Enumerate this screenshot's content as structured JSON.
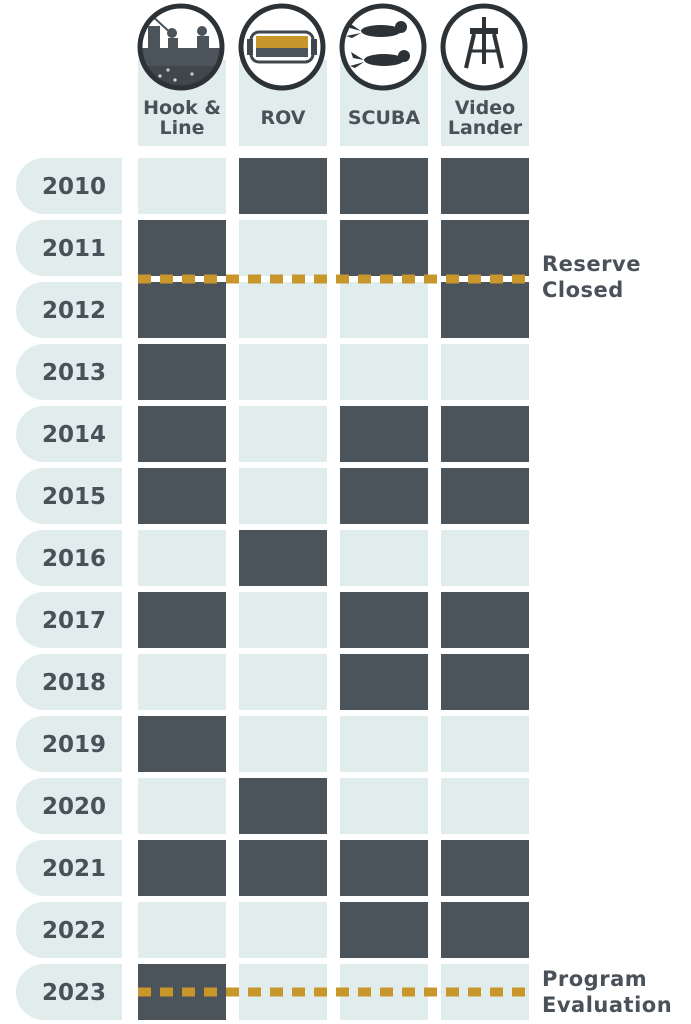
{
  "chart_data": {
    "type": "table",
    "columns": [
      {
        "label_lines": [
          "Hook &",
          "Line"
        ],
        "icon": "hook-and-line-fishing-boat-icon"
      },
      {
        "label_lines": [
          "ROV"
        ],
        "icon": "rov-vehicle-icon"
      },
      {
        "label_lines": [
          "SCUBA"
        ],
        "icon": "scuba-divers-icon"
      },
      {
        "label_lines": [
          "Video",
          "Lander"
        ],
        "icon": "video-lander-tripod-icon"
      }
    ],
    "years": [
      "2010",
      "2011",
      "2012",
      "2013",
      "2014",
      "2015",
      "2016",
      "2017",
      "2018",
      "2019",
      "2020",
      "2021",
      "2022",
      "2023"
    ],
    "surveyed": [
      [
        0,
        1,
        1,
        1
      ],
      [
        1,
        0,
        1,
        1
      ],
      [
        1,
        0,
        0,
        1
      ],
      [
        1,
        0,
        0,
        0
      ],
      [
        1,
        0,
        1,
        1
      ],
      [
        1,
        0,
        1,
        1
      ],
      [
        0,
        1,
        0,
        0
      ],
      [
        1,
        0,
        1,
        1
      ],
      [
        0,
        0,
        1,
        1
      ],
      [
        1,
        0,
        0,
        0
      ],
      [
        0,
        1,
        0,
        0
      ],
      [
        1,
        1,
        1,
        1
      ],
      [
        0,
        0,
        1,
        1
      ],
      [
        1,
        0,
        0,
        0
      ]
    ],
    "annotations": [
      {
        "lines": [
          "Reserve",
          "Closed"
        ],
        "between_years": [
          "2011",
          "2012"
        ]
      },
      {
        "lines": [
          "Program",
          "Evaluation"
        ],
        "at_year": "2023"
      }
    ],
    "colors": {
      "surveyed": "#4b535b",
      "not_surveyed": "#e1ecec",
      "marker_line": "#c9962b",
      "text": "#4a5158"
    }
  }
}
